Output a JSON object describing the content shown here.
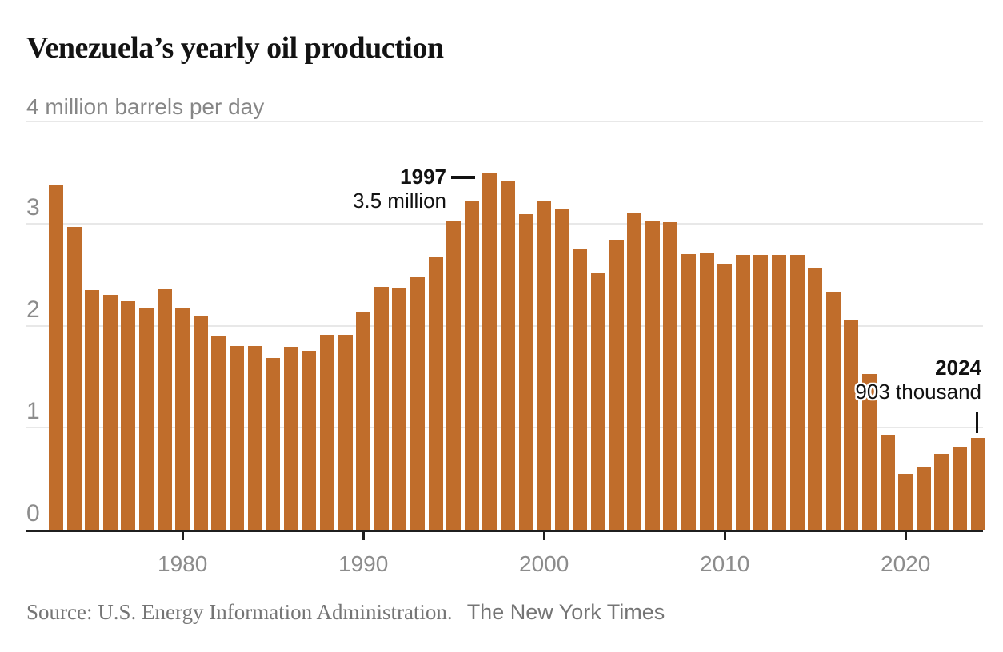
{
  "title": "Venezuela’s yearly oil production",
  "subtitle": "4 million barrels per day",
  "annotations": {
    "peak": {
      "year": "1997",
      "value_label": "3.5 million"
    },
    "latest": {
      "year": "2024",
      "value_label": "903 thousand"
    }
  },
  "source": {
    "text": "Source: U.S. Energy Information Administration.",
    "credit": "The New York Times"
  },
  "colors": {
    "bar": "#C06D2B",
    "grid": "#E8E8E8",
    "axis": "#1F1F1F",
    "tick_label": "#8C8C8C",
    "subtitle_text": "#868686",
    "annotation_text": "#121212",
    "source_text": "#757575",
    "title_text": "#131313",
    "background": "#FFFFFF"
  },
  "chart_data": {
    "type": "bar",
    "title": "Venezuela’s yearly oil production",
    "ylabel": "million barrels per day",
    "ylim": [
      0,
      4
    ],
    "y_ticks": [
      0,
      1,
      2,
      3,
      4
    ],
    "x_ticks": [
      1980,
      1990,
      2000,
      2010,
      2020
    ],
    "grid": "horizontal",
    "categories": [
      1973,
      1974,
      1975,
      1976,
      1977,
      1978,
      1979,
      1980,
      1981,
      1982,
      1983,
      1984,
      1985,
      1986,
      1987,
      1988,
      1989,
      1990,
      1991,
      1992,
      1993,
      1994,
      1995,
      1996,
      1997,
      1998,
      1999,
      2000,
      2001,
      2002,
      2003,
      2004,
      2005,
      2006,
      2007,
      2008,
      2009,
      2010,
      2011,
      2012,
      2013,
      2014,
      2015,
      2016,
      2017,
      2018,
      2019,
      2020,
      2021,
      2022,
      2023,
      2024
    ],
    "values": [
      3.37,
      2.97,
      2.35,
      2.3,
      2.24,
      2.17,
      2.36,
      2.17,
      2.1,
      1.9,
      1.8,
      1.8,
      1.68,
      1.79,
      1.75,
      1.91,
      1.91,
      2.14,
      2.38,
      2.37,
      2.47,
      2.67,
      3.03,
      3.22,
      3.5,
      3.41,
      3.09,
      3.22,
      3.15,
      2.75,
      2.51,
      2.84,
      3.11,
      3.03,
      3.01,
      2.7,
      2.71,
      2.6,
      2.69,
      2.69,
      2.69,
      2.69,
      2.57,
      2.33,
      2.06,
      1.53,
      0.93,
      0.55,
      0.61,
      0.74,
      0.81,
      0.903
    ],
    "annotations": [
      {
        "year": 1997,
        "label": "3.5 million"
      },
      {
        "year": 2024,
        "label": "903 thousand"
      }
    ]
  }
}
